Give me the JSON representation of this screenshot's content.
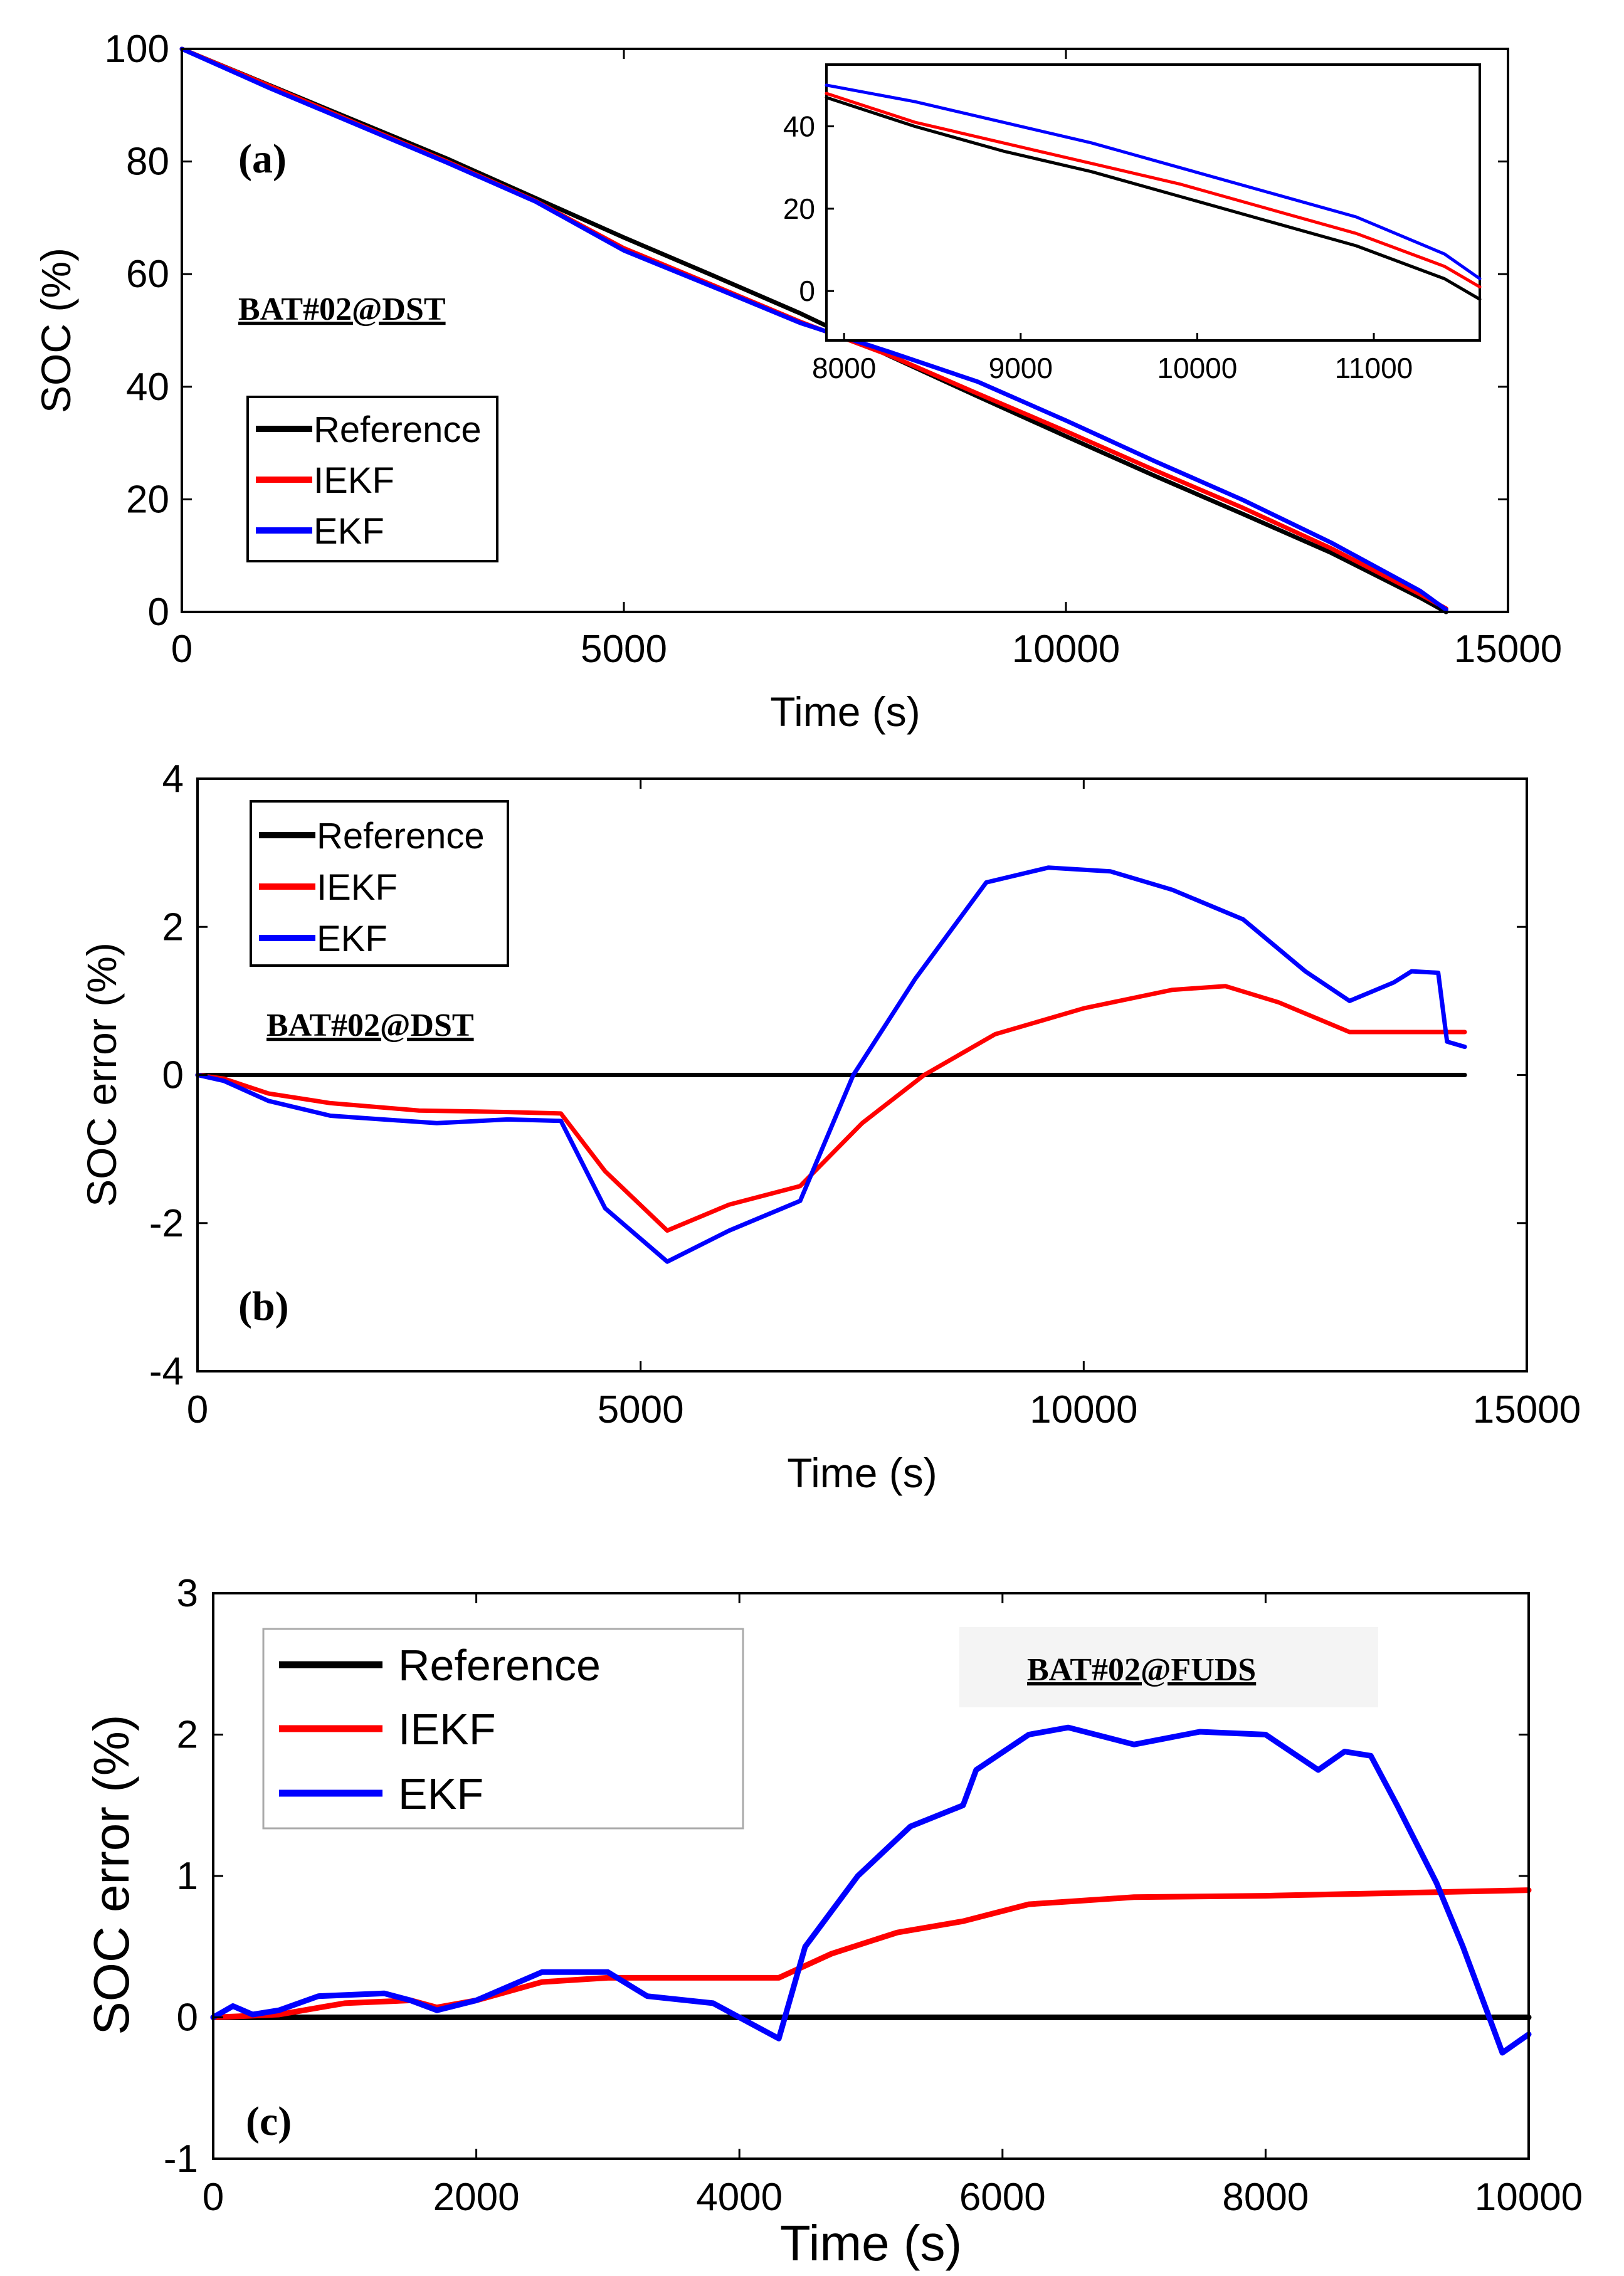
{
  "colors": {
    "reference": "#000000",
    "iekf": "#ff0000",
    "ekf": "#0000ff"
  },
  "chart_data": [
    {
      "id": "a",
      "type": "line",
      "panel_label": "(a)",
      "annotation": "BAT#02@DST",
      "xlabel": "Time (s)",
      "ylabel": "SOC (%)",
      "xlim": [
        0,
        15000
      ],
      "ylim": [
        0,
        100
      ],
      "xticks": [
        "0",
        "5000",
        "10000",
        "15000"
      ],
      "yticks": [
        "0",
        "20",
        "40",
        "60",
        "80",
        "100"
      ],
      "legend": [
        "Reference",
        "IEKF",
        "EKF"
      ],
      "series": [
        {
          "name": "Reference",
          "color": "#000000",
          "x": [
            0,
            1000,
            2000,
            3000,
            4000,
            5000,
            6000,
            7000,
            8000,
            9000,
            10000,
            11000,
            12000,
            13000,
            14000,
            14300
          ],
          "y": [
            100,
            93.5,
            87,
            80.5,
            73.5,
            66.5,
            59.8,
            53,
            45.5,
            38.3,
            31.2,
            24.2,
            17.4,
            10.5,
            2.6,
            0
          ]
        },
        {
          "name": "IEKF",
          "color": "#ff0000",
          "x": [
            0,
            1000,
            2000,
            3000,
            4000,
            5000,
            6000,
            7000,
            8000,
            9000,
            10000,
            11000,
            12000,
            13000,
            14000,
            14300
          ],
          "y": [
            100,
            93.4,
            86.6,
            80,
            73,
            64.6,
            58.1,
            51.5,
            45.6,
            38.8,
            32.1,
            25.2,
            18.5,
            11.3,
            3.2,
            0.6
          ]
        },
        {
          "name": "EKF",
          "color": "#0000ff",
          "x": [
            0,
            1000,
            2000,
            3000,
            4000,
            5000,
            6000,
            7000,
            8000,
            9000,
            10000,
            11000,
            12000,
            13000,
            14000,
            14300
          ],
          "y": [
            100,
            93,
            86.4,
            79.8,
            72.9,
            64.2,
            57.8,
            51.3,
            46.2,
            40.9,
            34,
            26.8,
            19.9,
            12.3,
            3.8,
            0.4
          ]
        }
      ],
      "inset": {
        "xlim": [
          7900,
          11600
        ],
        "ylim": [
          -12,
          55
        ],
        "xticks": [
          "8000",
          "9000",
          "10000",
          "11000"
        ],
        "yticks": [
          "0",
          "20",
          "40"
        ],
        "series": [
          {
            "name": "Reference",
            "color": "#000000",
            "x": [
              7900,
              8400,
              8900,
              9400,
              9900,
              10400,
              10900,
              11400,
              11600
            ],
            "y": [
              47,
              40,
              34,
              29,
              23,
              17,
              11,
              3,
              -2
            ]
          },
          {
            "name": "IEKF",
            "color": "#ff0000",
            "x": [
              7900,
              8400,
              8900,
              9400,
              9900,
              10400,
              10900,
              11400,
              11600
            ],
            "y": [
              48,
              41,
              36,
              31,
              26,
              20,
              14,
              6,
              1
            ]
          },
          {
            "name": "EKF",
            "color": "#0000ff",
            "x": [
              7900,
              8400,
              8900,
              9400,
              9900,
              10400,
              10900,
              11400,
              11600
            ],
            "y": [
              50,
              46,
              41,
              36,
              30,
              24,
              18,
              9,
              3
            ]
          }
        ]
      }
    },
    {
      "id": "b",
      "type": "line",
      "panel_label": "(b)",
      "annotation": "BAT#02@DST",
      "xlabel": "Time (s)",
      "ylabel": "SOC error (%)",
      "xlim": [
        0,
        15000
      ],
      "ylim": [
        -4,
        4
      ],
      "xticks": [
        "0",
        "5000",
        "10000",
        "15000"
      ],
      "yticks": [
        "-4",
        "-2",
        "0",
        "2",
        "4"
      ],
      "legend": [
        "Reference",
        "IEKF",
        "EKF"
      ],
      "series": [
        {
          "name": "Reference",
          "color": "#000000",
          "x": [
            0,
            14300
          ],
          "y": [
            0,
            0
          ]
        },
        {
          "name": "IEKF",
          "color": "#ff0000",
          "x": [
            0,
            300,
            800,
            1500,
            2500,
            3500,
            4100,
            4600,
            5300,
            6000,
            6800,
            7500,
            8200,
            9000,
            10000,
            11000,
            11600,
            12200,
            13000,
            14300
          ],
          "y": [
            0,
            -0.05,
            -0.25,
            -0.38,
            -0.48,
            -0.5,
            -0.52,
            -1.3,
            -2.1,
            -1.75,
            -1.5,
            -0.65,
            0,
            0.55,
            0.9,
            1.15,
            1.2,
            0.98,
            0.58,
            0.58
          ]
        },
        {
          "name": "EKF",
          "color": "#0000ff",
          "x": [
            0,
            300,
            800,
            1500,
            2700,
            3500,
            4100,
            4600,
            5300,
            6000,
            6800,
            7400,
            8100,
            8900,
            9600,
            10300,
            11000,
            11800,
            12500,
            13000,
            13300,
            13500,
            13700,
            14000,
            14100,
            14300
          ],
          "y": [
            0,
            -0.08,
            -0.35,
            -0.55,
            -0.65,
            -0.6,
            -0.62,
            -1.8,
            -2.52,
            -2.1,
            -1.7,
            0,
            1.3,
            2.6,
            2.8,
            2.75,
            2.5,
            2.1,
            1.4,
            1.0,
            1.15,
            1.25,
            1.4,
            1.38,
            0.45,
            0.38
          ]
        }
      ]
    },
    {
      "id": "c",
      "type": "line",
      "panel_label": "(c)",
      "annotation": "BAT#02@FUDS",
      "xlabel": "Time (s)",
      "ylabel": "SOC error (%)",
      "xlim": [
        0,
        10000
      ],
      "ylim": [
        -1,
        3
      ],
      "xticks": [
        "0",
        "2000",
        "4000",
        "6000",
        "8000",
        "10000"
      ],
      "yticks": [
        "-1",
        "0",
        "1",
        "2",
        "3"
      ],
      "legend": [
        "Reference",
        "IEKF",
        "EKF"
      ],
      "series": [
        {
          "name": "Reference",
          "color": "#000000",
          "x": [
            0,
            10000
          ],
          "y": [
            0,
            0
          ]
        },
        {
          "name": "IEKF",
          "color": "#ff0000",
          "x": [
            0,
            500,
            1000,
            1500,
            1700,
            2000,
            2500,
            3000,
            4000,
            4300,
            4700,
            5200,
            5700,
            6200,
            7000,
            8000,
            9000,
            10000
          ],
          "y": [
            0,
            0.02,
            0.1,
            0.12,
            0.07,
            0.12,
            0.25,
            0.28,
            0.28,
            0.28,
            0.45,
            0.6,
            0.68,
            0.8,
            0.85,
            0.86,
            0.88,
            0.9
          ]
        },
        {
          "name": "EKF",
          "color": "#0000ff",
          "x": [
            0,
            150,
            300,
            500,
            800,
            1300,
            1500,
            1700,
            2000,
            2500,
            3000,
            3300,
            3800,
            4100,
            4300,
            4500,
            4900,
            5300,
            5700,
            5800,
            6200,
            6500,
            7000,
            7500,
            8000,
            8400,
            8600,
            8800,
            9000,
            9300,
            9500,
            9700,
            9800,
            10000
          ],
          "y": [
            0,
            0.08,
            0.02,
            0.05,
            0.15,
            0.17,
            0.12,
            0.05,
            0.12,
            0.32,
            0.32,
            0.15,
            0.1,
            -0.05,
            -0.15,
            0.5,
            1.0,
            1.35,
            1.5,
            1.75,
            2.0,
            2.05,
            1.93,
            2.02,
            2.0,
            1.75,
            1.88,
            1.85,
            1.5,
            0.95,
            0.5,
            0,
            -0.25,
            -0.12
          ]
        }
      ]
    }
  ]
}
